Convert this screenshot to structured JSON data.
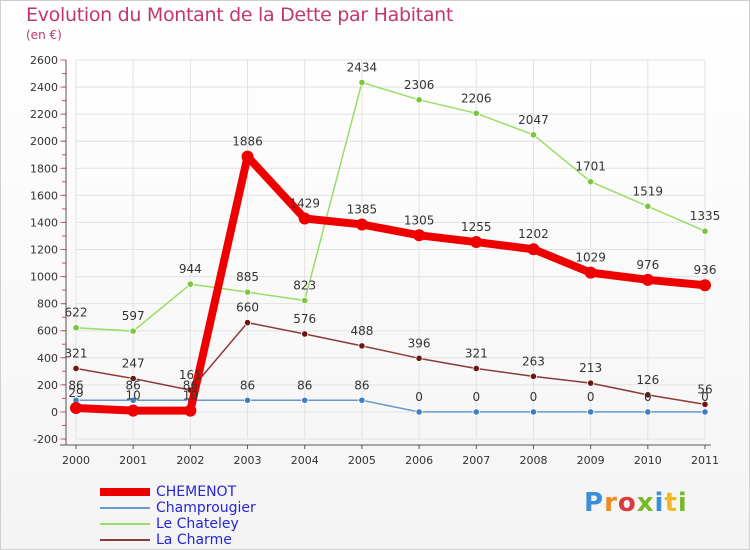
{
  "title": "Evolution du Montant de la Dette par Habitant",
  "subtitle": "(en €)",
  "logo": {
    "text": "Proxiti",
    "colors": [
      "#3a8fd8",
      "#f08a1c",
      "#d93c3c",
      "#7ab829",
      "#3a8fd8",
      "#f2b81e",
      "#7ab829"
    ]
  },
  "chart_data": {
    "type": "line",
    "title": "Evolution du Montant de la Dette par Habitant",
    "subtitle": "(en €)",
    "categories": [
      "2000",
      "2001",
      "2002",
      "2003",
      "2004",
      "2005",
      "2006",
      "2007",
      "2008",
      "2009",
      "2010",
      "2011"
    ],
    "ylim": [
      -200,
      2600
    ],
    "yticks": [
      "-200",
      "0",
      "200",
      "400",
      "600",
      "800",
      "1000",
      "1200",
      "1400",
      "1600",
      "1800",
      "2000",
      "2200",
      "2400",
      "2600"
    ],
    "grid": true,
    "legend_position": "bottom-left",
    "series": [
      {
        "name": "CHEMENOT",
        "color": "#ee0000",
        "width": 8,
        "marker": 6,
        "values": [
          29,
          10,
          10,
          1886,
          1429,
          1385,
          1305,
          1255,
          1202,
          1029,
          976,
          936
        ],
        "labels": [
          "29",
          "10",
          "10",
          "1886",
          "1429",
          "1385",
          "1305",
          "1255",
          "1202",
          "1029",
          "976",
          "936"
        ]
      },
      {
        "name": "Champrougier",
        "color": "#6699cc",
        "width": 1.5,
        "marker": 3.2,
        "markerFill": "#3d7fc6",
        "values": [
          86,
          86,
          86,
          86,
          86,
          86,
          0,
          0,
          0,
          0,
          0,
          0
        ],
        "labels": [
          "86",
          "86",
          "86",
          "86",
          "86",
          "86",
          "0",
          "0",
          "0",
          "0",
          "0",
          "0"
        ]
      },
      {
        "name": "Le Chateley",
        "color": "#99dd66",
        "width": 1.5,
        "marker": 3.2,
        "markerFill": "#7cc63e",
        "values": [
          622,
          597,
          944,
          885,
          823,
          2434,
          2306,
          2206,
          2047,
          1701,
          1519,
          1335
        ],
        "labels": [
          "622",
          "597",
          "944",
          "885",
          "823",
          "2434",
          "2306",
          "2206",
          "2047",
          "1701",
          "1519",
          "1335"
        ]
      },
      {
        "name": "La Charme",
        "color": "#8b3a3a",
        "width": 1.5,
        "marker": 3.2,
        "markerFill": "#6e1515",
        "values": [
          321,
          247,
          161,
          660,
          576,
          488,
          396,
          321,
          263,
          213,
          126,
          56
        ],
        "labels": [
          "321",
          "247",
          "161",
          "660",
          "576",
          "488",
          "396",
          "321",
          "263",
          "213",
          "126",
          "56"
        ]
      }
    ]
  }
}
